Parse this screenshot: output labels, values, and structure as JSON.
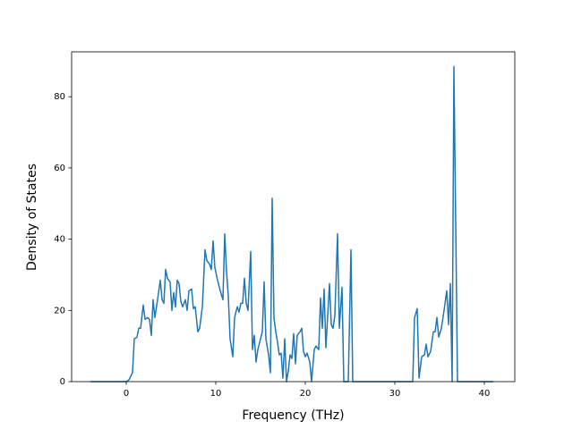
{
  "chart_data": {
    "type": "line",
    "xlabel": "Frequency (THz)",
    "ylabel": "Density of States",
    "color": "#1f77b4",
    "x": [
      -4,
      0,
      0.3,
      0.7,
      0.9,
      1.2,
      1.4,
      1.6,
      1.9,
      2.1,
      2.4,
      2.6,
      2.8,
      3.0,
      3.2,
      3.5,
      3.8,
      4.0,
      4.2,
      4.4,
      4.6,
      4.9,
      5.1,
      5.3,
      5.5,
      5.7,
      5.9,
      6.1,
      6.3,
      6.6,
      6.8,
      7.0,
      7.3,
      7.5,
      7.7,
      8.0,
      8.2,
      8.5,
      8.8,
      9.0,
      9.3,
      9.5,
      9.7,
      9.9,
      10.2,
      10.5,
      10.8,
      11.0,
      11.2,
      11.4,
      11.6,
      11.9,
      12.1,
      12.4,
      12.6,
      12.8,
      13.0,
      13.2,
      13.4,
      13.6,
      13.9,
      14.1,
      14.3,
      14.5,
      14.7,
      15.0,
      15.2,
      15.4,
      15.6,
      15.9,
      16.1,
      16.3,
      16.5,
      16.7,
      16.9,
      17.1,
      17.3,
      17.5,
      17.7,
      17.9,
      18.1,
      18.3,
      18.5,
      18.7,
      18.9,
      19.1,
      19.4,
      19.6,
      19.8,
      20.0,
      20.2,
      20.5,
      20.7,
      21.0,
      21.2,
      21.5,
      21.7,
      21.9,
      22.1,
      22.3,
      22.7,
      22.9,
      23.1,
      23.3,
      23.6,
      23.8,
      24.1,
      24.3,
      24.8,
      25.1,
      25.3,
      32.0,
      32.2,
      32.5,
      32.7,
      33.0,
      33.3,
      33.5,
      33.7,
      34.0,
      34.3,
      34.5,
      34.7,
      34.9,
      35.2,
      35.5,
      35.8,
      36.0,
      36.2,
      36.4,
      36.6,
      37.0,
      41.0
    ],
    "values": [
      0,
      0,
      0.5,
      2.5,
      12,
      12.5,
      15,
      15,
      21.5,
      17.5,
      18,
      17.5,
      13,
      23,
      18,
      23,
      28.5,
      23,
      22,
      31.5,
      29,
      28,
      20,
      25,
      21,
      28.5,
      27.5,
      22.5,
      21,
      23,
      20,
      25.5,
      26,
      20.5,
      21,
      14,
      15,
      21,
      37,
      34,
      33,
      31.5,
      39.5,
      32,
      28.5,
      25.5,
      23,
      41.5,
      31,
      24,
      12,
      7,
      18,
      21,
      19.5,
      22,
      22,
      29,
      22,
      20,
      36.5,
      9,
      13,
      5.5,
      9,
      12,
      14,
      28,
      12,
      7.5,
      2.5,
      51.5,
      18,
      14,
      11,
      7.5,
      8,
      1,
      12,
      0,
      3,
      7.5,
      6.5,
      13.5,
      5,
      13,
      14,
      15,
      8.5,
      7,
      8,
      5.5,
      0,
      9,
      10,
      9,
      23.5,
      15,
      26,
      9.5,
      27.5,
      16,
      15,
      18.5,
      41.5,
      15,
      26.5,
      0,
      0,
      37,
      0,
      0,
      18,
      20.5,
      1,
      7,
      7.5,
      10.5,
      7,
      8.5,
      14,
      14,
      18,
      12.5,
      15,
      20,
      25.5,
      16,
      27.5,
      0,
      88.5,
      0,
      0
    ],
    "xlim": [
      -6.1,
      43.4
    ],
    "ylim": [
      0,
      92.6
    ],
    "xticks": [
      0,
      10,
      20,
      30,
      40
    ],
    "yticks": [
      0,
      20,
      40,
      60,
      80
    ]
  }
}
